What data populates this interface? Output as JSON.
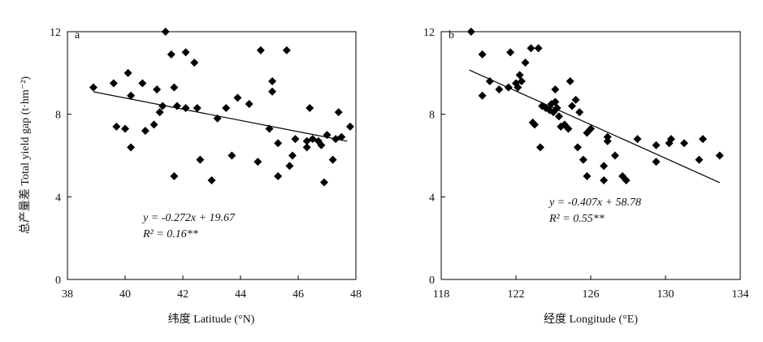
{
  "y_axis_label": "总产量差 Total yield gap (t·hm⁻²)",
  "chart_data": [
    {
      "type": "scatter",
      "panel_label": "a",
      "xlabel": "纬度 Latitude (°N)",
      "xlim": [
        38,
        48
      ],
      "ylim": [
        0,
        12
      ],
      "xticks": [
        38,
        40,
        42,
        44,
        46,
        48
      ],
      "yticks": [
        0,
        4,
        8,
        12
      ],
      "x_tick_labels": [
        "38",
        "40",
        "42",
        "44",
        "46",
        "48"
      ],
      "y_tick_labels": [
        "0",
        "4",
        "8",
        "12"
      ],
      "grid": false,
      "points": [
        [
          38.9,
          9.3
        ],
        [
          39.6,
          9.5
        ],
        [
          39.7,
          7.4
        ],
        [
          40.0,
          7.3
        ],
        [
          40.1,
          10.0
        ],
        [
          40.2,
          6.4
        ],
        [
          40.2,
          8.9
        ],
        [
          40.6,
          9.5
        ],
        [
          40.7,
          7.2
        ],
        [
          41.0,
          7.5
        ],
        [
          41.1,
          9.2
        ],
        [
          41.2,
          8.1
        ],
        [
          41.3,
          8.4
        ],
        [
          41.4,
          12.0
        ],
        [
          41.6,
          10.9
        ],
        [
          41.7,
          9.3
        ],
        [
          41.7,
          5.0
        ],
        [
          41.8,
          8.4
        ],
        [
          42.1,
          8.3
        ],
        [
          42.1,
          11.0
        ],
        [
          42.4,
          10.5
        ],
        [
          42.5,
          8.3
        ],
        [
          42.6,
          5.8
        ],
        [
          43.0,
          4.8
        ],
        [
          43.2,
          7.8
        ],
        [
          43.5,
          8.3
        ],
        [
          43.7,
          6.0
        ],
        [
          43.9,
          8.8
        ],
        [
          44.3,
          8.5
        ],
        [
          44.6,
          5.7
        ],
        [
          44.7,
          11.1
        ],
        [
          45.0,
          7.3
        ],
        [
          45.1,
          9.1
        ],
        [
          45.1,
          9.6
        ],
        [
          45.3,
          5.0
        ],
        [
          45.3,
          6.6
        ],
        [
          45.6,
          11.1
        ],
        [
          45.7,
          5.5
        ],
        [
          45.8,
          6.0
        ],
        [
          45.9,
          6.8
        ],
        [
          46.3,
          6.7
        ],
        [
          46.3,
          6.4
        ],
        [
          46.4,
          8.3
        ],
        [
          46.5,
          6.8
        ],
        [
          46.7,
          6.7
        ],
        [
          46.8,
          6.5
        ],
        [
          46.9,
          4.7
        ],
        [
          47.0,
          7.0
        ],
        [
          47.2,
          5.8
        ],
        [
          47.3,
          6.8
        ],
        [
          47.4,
          8.1
        ],
        [
          47.5,
          6.9
        ],
        [
          47.8,
          7.4
        ]
      ],
      "fit_line": {
        "slope": -0.272,
        "intercept": 19.67,
        "x_range": [
          38.9,
          47.7
        ]
      },
      "annotation": {
        "equation": "y = -0.272x + 19.67",
        "r2": "R² = 0.16**"
      }
    },
    {
      "type": "scatter",
      "panel_label": "b",
      "xlabel": "经度 Longitude (°E)",
      "xlim": [
        118,
        134
      ],
      "ylim": [
        0,
        12
      ],
      "xticks": [
        118,
        122,
        126,
        130,
        134
      ],
      "yticks": [
        0,
        4,
        8,
        12
      ],
      "x_tick_labels": [
        "118",
        "122",
        "126",
        "130",
        "134"
      ],
      "y_tick_labels": [
        "0",
        "4",
        "8",
        "12"
      ],
      "grid": false,
      "points": [
        [
          119.6,
          12.0
        ],
        [
          120.2,
          10.9
        ],
        [
          120.2,
          8.9
        ],
        [
          120.6,
          9.6
        ],
        [
          121.1,
          9.2
        ],
        [
          121.6,
          9.3
        ],
        [
          121.7,
          11.0
        ],
        [
          122.0,
          9.5
        ],
        [
          122.1,
          9.3
        ],
        [
          122.2,
          9.9
        ],
        [
          122.3,
          9.6
        ],
        [
          122.5,
          10.5
        ],
        [
          122.8,
          11.2
        ],
        [
          122.9,
          7.6
        ],
        [
          123.0,
          7.5
        ],
        [
          123.2,
          11.2
        ],
        [
          123.3,
          6.4
        ],
        [
          123.4,
          8.4
        ],
        [
          123.6,
          8.3
        ],
        [
          123.8,
          8.2
        ],
        [
          123.9,
          8.5
        ],
        [
          124.0,
          8.1
        ],
        [
          124.1,
          8.6
        ],
        [
          124.2,
          8.3
        ],
        [
          124.1,
          9.2
        ],
        [
          124.3,
          7.9
        ],
        [
          124.4,
          7.4
        ],
        [
          124.6,
          7.5
        ],
        [
          124.8,
          7.3
        ],
        [
          124.9,
          9.6
        ],
        [
          125.0,
          8.4
        ],
        [
          125.2,
          8.7
        ],
        [
          125.4,
          8.1
        ],
        [
          125.3,
          6.4
        ],
        [
          125.6,
          5.8
        ],
        [
          125.8,
          7.1
        ],
        [
          125.8,
          5.0
        ],
        [
          126.0,
          7.3
        ],
        [
          126.7,
          5.5
        ],
        [
          126.7,
          4.8
        ],
        [
          126.9,
          6.9
        ],
        [
          126.9,
          6.7
        ],
        [
          127.3,
          6.0
        ],
        [
          127.7,
          5.0
        ],
        [
          127.9,
          4.8
        ],
        [
          128.5,
          6.8
        ],
        [
          129.5,
          6.5
        ],
        [
          129.5,
          5.7
        ],
        [
          130.2,
          6.6
        ],
        [
          130.3,
          6.8
        ],
        [
          131.0,
          6.6
        ],
        [
          131.8,
          5.8
        ],
        [
          132.0,
          6.8
        ],
        [
          132.9,
          6.0
        ]
      ],
      "fit_line": {
        "slope": -0.407,
        "intercept": 58.78,
        "x_range": [
          119.5,
          132.9
        ]
      },
      "annotation": {
        "equation": "y = -0.407x + 58.78",
        "r2": "R² = 0.55**"
      }
    }
  ]
}
